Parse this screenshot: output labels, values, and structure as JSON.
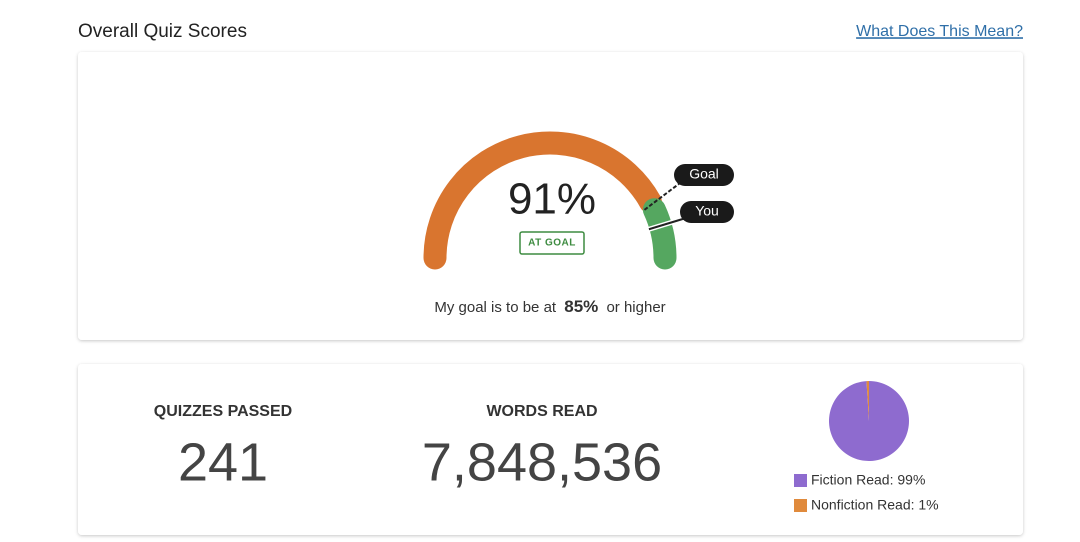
{
  "header": {
    "title": "Overall Quiz Scores",
    "link": "What Does This Mean?"
  },
  "gauge": {
    "score": {
      "value": 91,
      "label": "91%"
    },
    "status": "AT GOAL",
    "goal": {
      "value": 85,
      "label": "85%"
    },
    "goal_tag": "Goal",
    "score_tag": "You",
    "caption_start": "My goal is to be at",
    "caption_end": "or higher",
    "below_goal_color": "#d9752f",
    "above_goal_color": "#55a760"
  },
  "stats": [
    {
      "label": "QUIZZES PASSED",
      "value": "241"
    },
    {
      "label": "WORDS READ",
      "value": "7,848,536"
    }
  ],
  "pie": {
    "slices": [
      {
        "label": "Fiction Read: 99%",
        "value": 99,
        "color": "#8e6bcf"
      },
      {
        "label": "Nonfiction Read: 1%",
        "value": 1,
        "color": "#e08a3c"
      }
    ]
  }
}
